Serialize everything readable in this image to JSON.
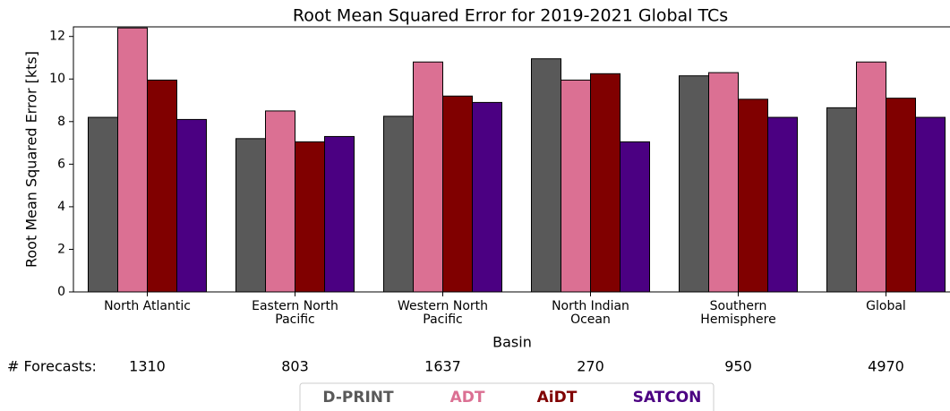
{
  "chart_data": {
    "type": "bar",
    "title": "Root Mean Squared Error for 2019-2021 Global TCs",
    "y_label": "Root Mean Squared Error [kts]",
    "x_label": "Basin",
    "categories": [
      "North Atlantic",
      "Eastern North\nPacific",
      "Western North\nPacific",
      "North Indian\nOcean",
      "Southern\nHemisphere",
      "Global"
    ],
    "series": [
      {
        "name": "D-PRINT",
        "color": "#595959",
        "values": [
          8.2,
          7.2,
          8.25,
          10.95,
          10.15,
          8.65
        ]
      },
      {
        "name": "ADT",
        "color": "#db7093",
        "values": [
          12.4,
          8.5,
          10.8,
          9.95,
          10.3,
          10.8
        ]
      },
      {
        "name": "AiDT",
        "color": "#800000",
        "values": [
          9.95,
          7.05,
          9.2,
          10.25,
          9.05,
          9.1
        ]
      },
      {
        "name": "SATCON",
        "color": "#4b0082",
        "values": [
          8.1,
          7.3,
          8.9,
          7.05,
          8.2,
          8.2
        ]
      }
    ],
    "forecast_label": "# Forecasts:",
    "forecast_counts": [
      1310,
      803,
      1637,
      270,
      950,
      4970
    ],
    "ylim": [
      0,
      12.45
    ],
    "yticks": [
      0,
      2,
      4,
      6,
      8,
      10,
      12
    ],
    "legend": "bottom"
  }
}
